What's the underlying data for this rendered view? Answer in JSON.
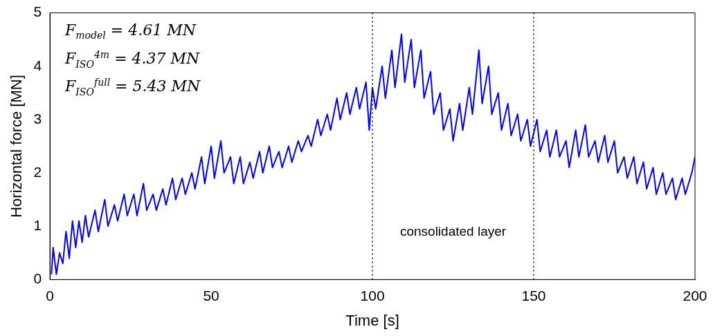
{
  "chart_data": {
    "type": "line",
    "xlabel": "Time [s]",
    "ylabel": "Horizontal force [MN]",
    "xlim": [
      0,
      200
    ],
    "ylim": [
      0,
      5
    ],
    "xticks": [
      0,
      50,
      100,
      150,
      200
    ],
    "yticks": [
      0,
      1,
      2,
      3,
      4,
      5
    ],
    "grid": false,
    "legend": false,
    "marker": "none",
    "line_style": "solid",
    "ref_lines": [
      {
        "axis": "x",
        "value": 100,
        "label": null,
        "color": "#000000",
        "line_style": "dotted"
      },
      {
        "axis": "x",
        "value": 150,
        "label": null,
        "color": "#000000",
        "line_style": "dotted"
      }
    ],
    "annotations": [
      "F$_{model}$ = 4.61 MN",
      "F$_{ISO}$$^{4m}$ = 4.37 MN",
      "F$_{ISO}$$^{full}$ = 5.43 MN",
      "consolidated layer"
    ],
    "series": [
      {
        "color": "#0000ff",
        "x": [
          0.5,
          1,
          2,
          3,
          4,
          5,
          6,
          7,
          8,
          9,
          10,
          11,
          12,
          14,
          15,
          17,
          18,
          20,
          21,
          23,
          24,
          26,
          27,
          29,
          30,
          32,
          33,
          35,
          36,
          38,
          39,
          41,
          42,
          44,
          45,
          47,
          48,
          50,
          51,
          53,
          54,
          56,
          57,
          59,
          60,
          62,
          63,
          65,
          66,
          68,
          69,
          71,
          72,
          74,
          75,
          77,
          78,
          80,
          81,
          83,
          84,
          86,
          87,
          89,
          90,
          92,
          93,
          95,
          96,
          98,
          99,
          100,
          101,
          103,
          104,
          106,
          107,
          109,
          110,
          112,
          113,
          115,
          116,
          118,
          119,
          121,
          122,
          124,
          125,
          127,
          128,
          130,
          131,
          133,
          134,
          136,
          137,
          139,
          140,
          142,
          143,
          145,
          146,
          148,
          149,
          151,
          152,
          154,
          155,
          157,
          158,
          160,
          161,
          163,
          164,
          166,
          167,
          169,
          170,
          172,
          173,
          175,
          176,
          178,
          179,
          181,
          182,
          184,
          185,
          187,
          188,
          190,
          191,
          193,
          194,
          196,
          197,
          199,
          200
        ],
        "values": [
          0.1,
          0.6,
          0.1,
          0.5,
          0.3,
          0.9,
          0.4,
          1.1,
          0.6,
          1.1,
          0.7,
          1.2,
          0.8,
          1.3,
          0.9,
          1.5,
          1.0,
          1.4,
          1.1,
          1.6,
          1.2,
          1.6,
          1.2,
          1.8,
          1.3,
          1.6,
          1.3,
          1.7,
          1.4,
          1.9,
          1.5,
          1.9,
          1.6,
          2.0,
          1.7,
          2.3,
          1.8,
          2.5,
          1.9,
          2.6,
          2.0,
          2.3,
          1.8,
          2.3,
          1.8,
          2.2,
          1.9,
          2.4,
          2.0,
          2.5,
          2.1,
          2.4,
          2.1,
          2.5,
          2.2,
          2.6,
          2.4,
          2.7,
          2.5,
          3.0,
          2.7,
          3.1,
          2.8,
          3.4,
          3.0,
          3.5,
          3.1,
          3.6,
          3.2,
          3.7,
          2.8,
          3.6,
          3.2,
          4.0,
          3.4,
          4.3,
          3.6,
          4.6,
          3.7,
          4.5,
          3.6,
          4.3,
          3.4,
          3.9,
          3.1,
          3.5,
          2.8,
          3.2,
          2.6,
          3.3,
          2.8,
          3.6,
          3.1,
          4.3,
          3.3,
          4.0,
          3.1,
          3.5,
          2.8,
          3.3,
          2.7,
          3.1,
          2.6,
          3.0,
          2.5,
          3.0,
          2.4,
          2.8,
          2.3,
          2.8,
          2.3,
          2.6,
          2.1,
          2.8,
          2.3,
          2.9,
          2.3,
          2.6,
          2.2,
          2.7,
          2.2,
          2.6,
          2.0,
          2.3,
          1.9,
          2.3,
          1.8,
          2.2,
          1.7,
          2.1,
          1.6,
          2.0,
          1.6,
          1.9,
          1.5,
          1.9,
          1.6,
          2.0,
          2.3
        ]
      }
    ]
  }
}
